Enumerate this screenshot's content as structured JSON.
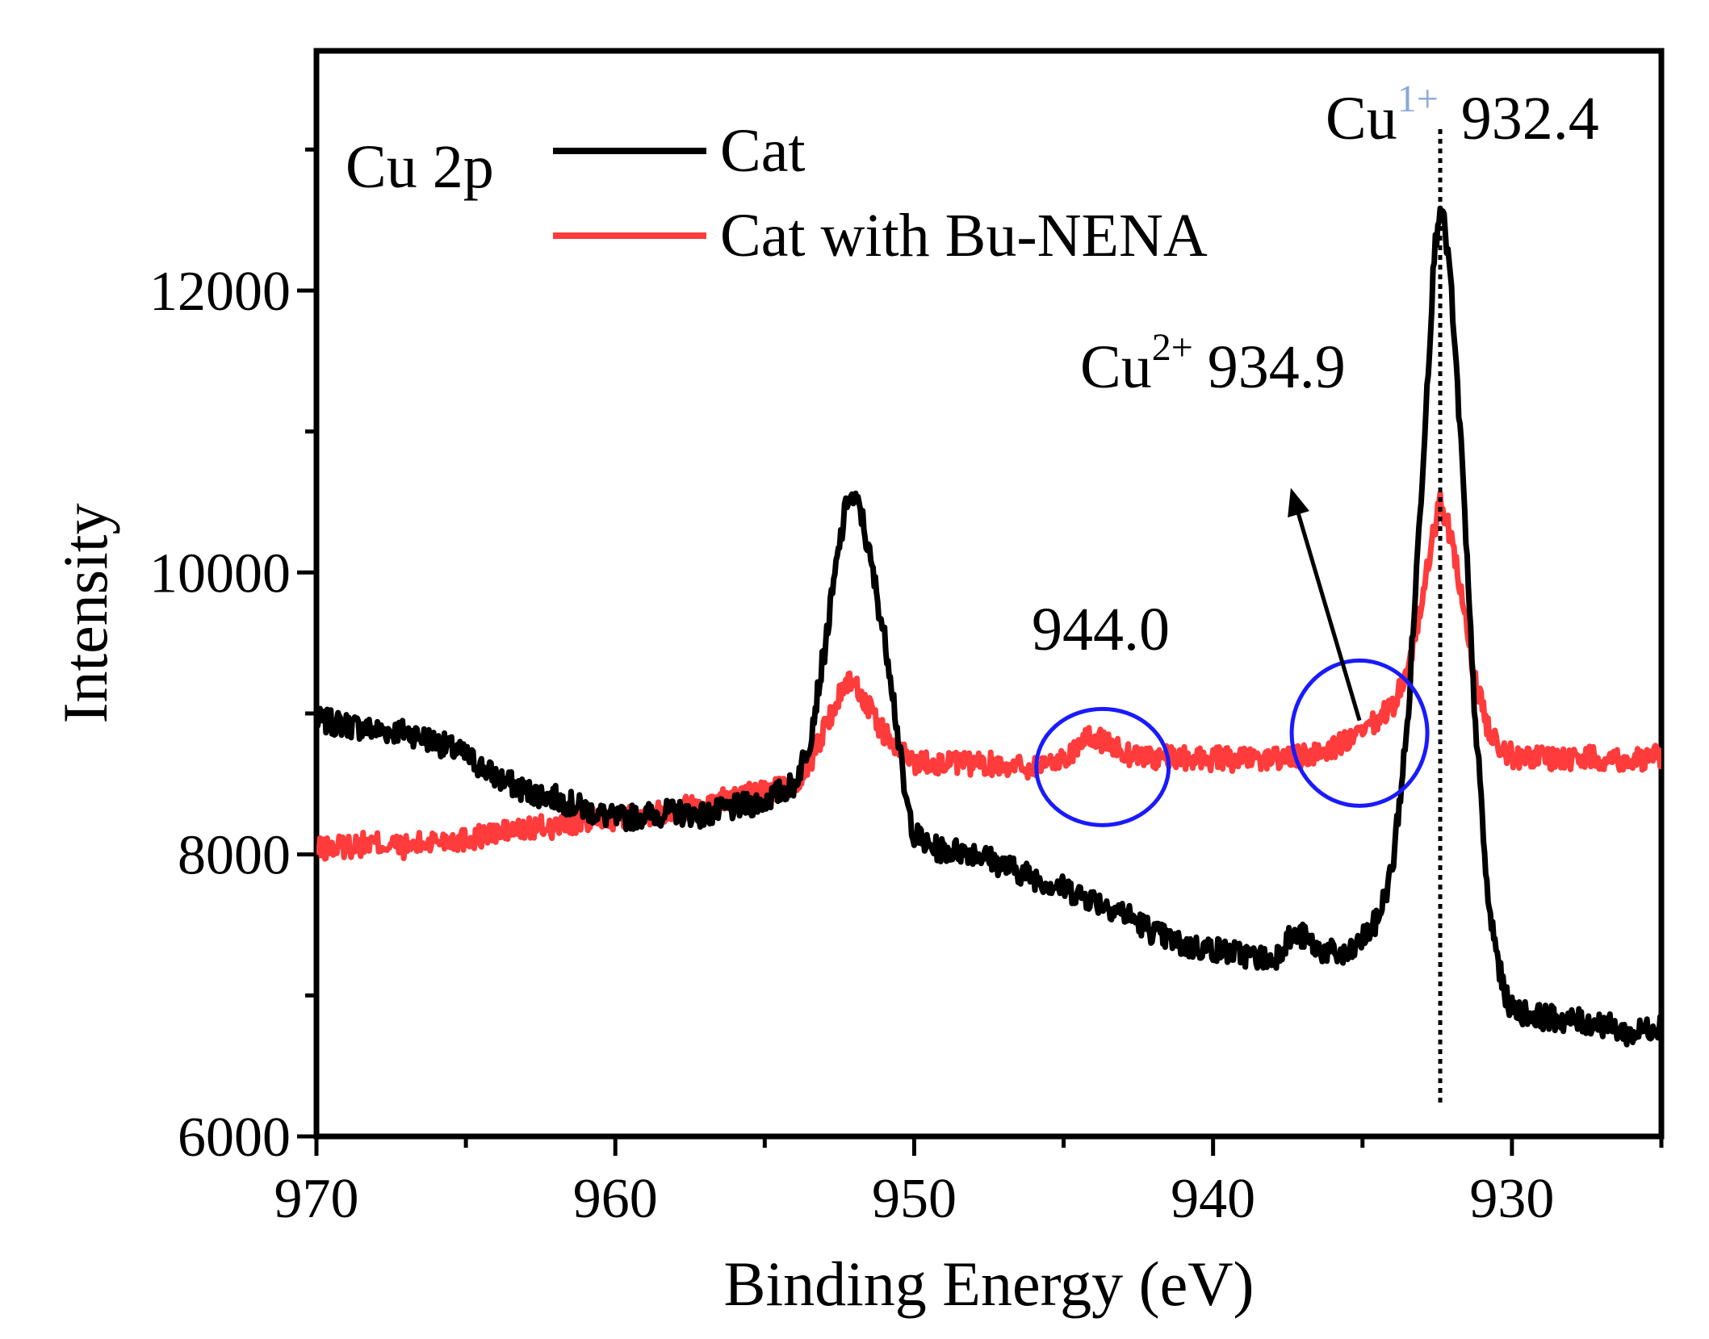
{
  "chart_data": {
    "type": "line",
    "panel_label": "Cu 2p",
    "xlabel": "Binding Energy (eV)",
    "ylabel": "Intensity",
    "xlim": [
      970,
      925
    ],
    "ylim": [
      6000,
      13700
    ],
    "x_ticks": [
      970,
      960,
      950,
      940,
      930
    ],
    "x_tick_labels": [
      "970",
      "960",
      "950",
      "940",
      "930"
    ],
    "y_ticks": [
      6000,
      8000,
      10000,
      12000
    ],
    "y_tick_labels": [
      "6000",
      "8000",
      "10000",
      "12000"
    ],
    "grid": false,
    "legend_position": "top-left",
    "series": [
      {
        "name": "Cat",
        "color": "#000000",
        "points": [
          [
            970,
            8950
          ],
          [
            969,
            8920
          ],
          [
            968,
            8880
          ],
          [
            967,
            8870
          ],
          [
            966,
            8800
          ],
          [
            965,
            8700
          ],
          [
            964,
            8550
          ],
          [
            963,
            8450
          ],
          [
            962,
            8400
          ],
          [
            961,
            8320
          ],
          [
            960,
            8250
          ],
          [
            959,
            8280
          ],
          [
            958,
            8300
          ],
          [
            957,
            8280
          ],
          [
            956,
            8330
          ],
          [
            955,
            8380
          ],
          [
            954,
            8500
          ],
          [
            953.5,
            8800
          ],
          [
            953,
            9450
          ],
          [
            952.5,
            10200
          ],
          [
            952.2,
            10550
          ],
          [
            951.8,
            10450
          ],
          [
            951.3,
            9900
          ],
          [
            950.8,
            9300
          ],
          [
            950.3,
            8400
          ],
          [
            950,
            8150
          ],
          [
            949.5,
            8050
          ],
          [
            949,
            8030
          ],
          [
            948,
            8020
          ],
          [
            947,
            7920
          ],
          [
            946,
            7840
          ],
          [
            945,
            7760
          ],
          [
            944,
            7680
          ],
          [
            943,
            7590
          ],
          [
            942,
            7450
          ],
          [
            941,
            7350
          ],
          [
            940,
            7330
          ],
          [
            939,
            7290
          ],
          [
            938,
            7250
          ],
          [
            937.5,
            7400
          ],
          [
            937,
            7420
          ],
          [
            936.5,
            7330
          ],
          [
            936,
            7300
          ],
          [
            935.5,
            7270
          ],
          [
            935,
            7400
          ],
          [
            934.5,
            7530
          ],
          [
            934,
            7900
          ],
          [
            933.5,
            8900
          ],
          [
            933,
            10700
          ],
          [
            932.6,
            12250
          ],
          [
            932.4,
            12650
          ],
          [
            932.1,
            12200
          ],
          [
            931.7,
            10900
          ],
          [
            931.3,
            9200
          ],
          [
            930.8,
            7650
          ],
          [
            930.3,
            7050
          ],
          [
            930,
            6900
          ],
          [
            929,
            6850
          ],
          [
            928,
            6820
          ],
          [
            927,
            6800
          ],
          [
            926,
            6720
          ],
          [
            925,
            6800
          ]
        ]
      },
      {
        "name": "Cat with Bu-NENA",
        "color": "#ff3b3b",
        "points": [
          [
            970,
            8030
          ],
          [
            969,
            8060
          ],
          [
            968,
            8080
          ],
          [
            967,
            8050
          ],
          [
            966,
            8100
          ],
          [
            965,
            8110
          ],
          [
            964,
            8150
          ],
          [
            963,
            8180
          ],
          [
            962,
            8200
          ],
          [
            961,
            8240
          ],
          [
            960,
            8260
          ],
          [
            959,
            8290
          ],
          [
            958,
            8320
          ],
          [
            957,
            8360
          ],
          [
            956,
            8400
          ],
          [
            955,
            8440
          ],
          [
            954,
            8500
          ],
          [
            953.5,
            8650
          ],
          [
            953,
            8900
          ],
          [
            952.5,
            9120
          ],
          [
            952.2,
            9250
          ],
          [
            951.8,
            9150
          ],
          [
            951.3,
            8950
          ],
          [
            950.8,
            8800
          ],
          [
            950.3,
            8700
          ],
          [
            950,
            8660
          ],
          [
            949,
            8650
          ],
          [
            948,
            8640
          ],
          [
            947,
            8640
          ],
          [
            946,
            8620
          ],
          [
            945,
            8680
          ],
          [
            944.5,
            8780
          ],
          [
            944,
            8830
          ],
          [
            943.5,
            8790
          ],
          [
            943,
            8720
          ],
          [
            942,
            8690
          ],
          [
            941,
            8680
          ],
          [
            940,
            8680
          ],
          [
            939,
            8670
          ],
          [
            938,
            8680
          ],
          [
            937,
            8690
          ],
          [
            936,
            8760
          ],
          [
            935,
            8850
          ],
          [
            934.5,
            8950
          ],
          [
            934,
            9050
          ],
          [
            933.5,
            9300
          ],
          [
            933,
            9800
          ],
          [
            932.6,
            10300
          ],
          [
            932.4,
            10500
          ],
          [
            932.1,
            10300
          ],
          [
            931.7,
            9850
          ],
          [
            931.3,
            9300
          ],
          [
            930.8,
            8900
          ],
          [
            930.3,
            8750
          ],
          [
            930,
            8700
          ],
          [
            929,
            8690
          ],
          [
            928,
            8680
          ],
          [
            927,
            8690
          ],
          [
            926,
            8670
          ],
          [
            925,
            8700
          ]
        ]
      }
    ],
    "annotations": {
      "cu1_base": "Cu",
      "cu1_sup": "1+",
      "cu1_value": "932.4",
      "cu2_base": "Cu",
      "cu2_sup": "2+",
      "cu2_value": "934.9",
      "sat_value": "944.0",
      "dotted_line_x": 932.4,
      "circles": [
        {
          "center_energy": 943.7,
          "center_intensity": 8620
        },
        {
          "center_energy": 935.1,
          "center_intensity": 8860
        }
      ],
      "arrow_from": [
        935.1,
        8950
      ],
      "arrow_to": [
        937.4,
        10600
      ],
      "circle_color": "#1a1aff"
    }
  }
}
